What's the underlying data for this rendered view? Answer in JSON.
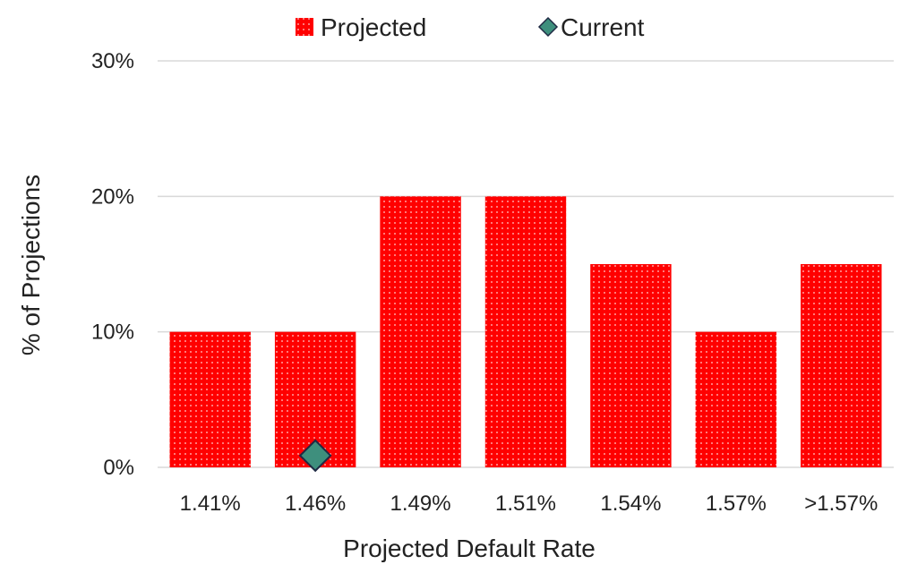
{
  "chart_data": {
    "type": "bar",
    "title": "",
    "xlabel": "Projected Default Rate",
    "ylabel": "% of Projections",
    "categories": [
      "1.41%",
      "1.46%",
      "1.49%",
      "1.51%",
      "1.54%",
      "1.57%",
      ">1.57%"
    ],
    "series": [
      {
        "name": "Projected",
        "type": "bar",
        "values": [
          10,
          10,
          20,
          20,
          15,
          10,
          15
        ],
        "color": "#ff0000",
        "pattern": "dotted"
      },
      {
        "name": "Current",
        "type": "scatter",
        "marker": "diamond",
        "points": [
          {
            "category": "1.46%",
            "value": 1
          }
        ],
        "color": "#3e8f7d",
        "edge_color": "#1f2a44"
      }
    ],
    "ylim": [
      0,
      30
    ],
    "yticks": [
      0,
      10,
      20,
      30
    ],
    "ytick_labels": [
      "0%",
      "10%",
      "20%",
      "30%"
    ],
    "grid": true,
    "legend_position": "top-center"
  }
}
